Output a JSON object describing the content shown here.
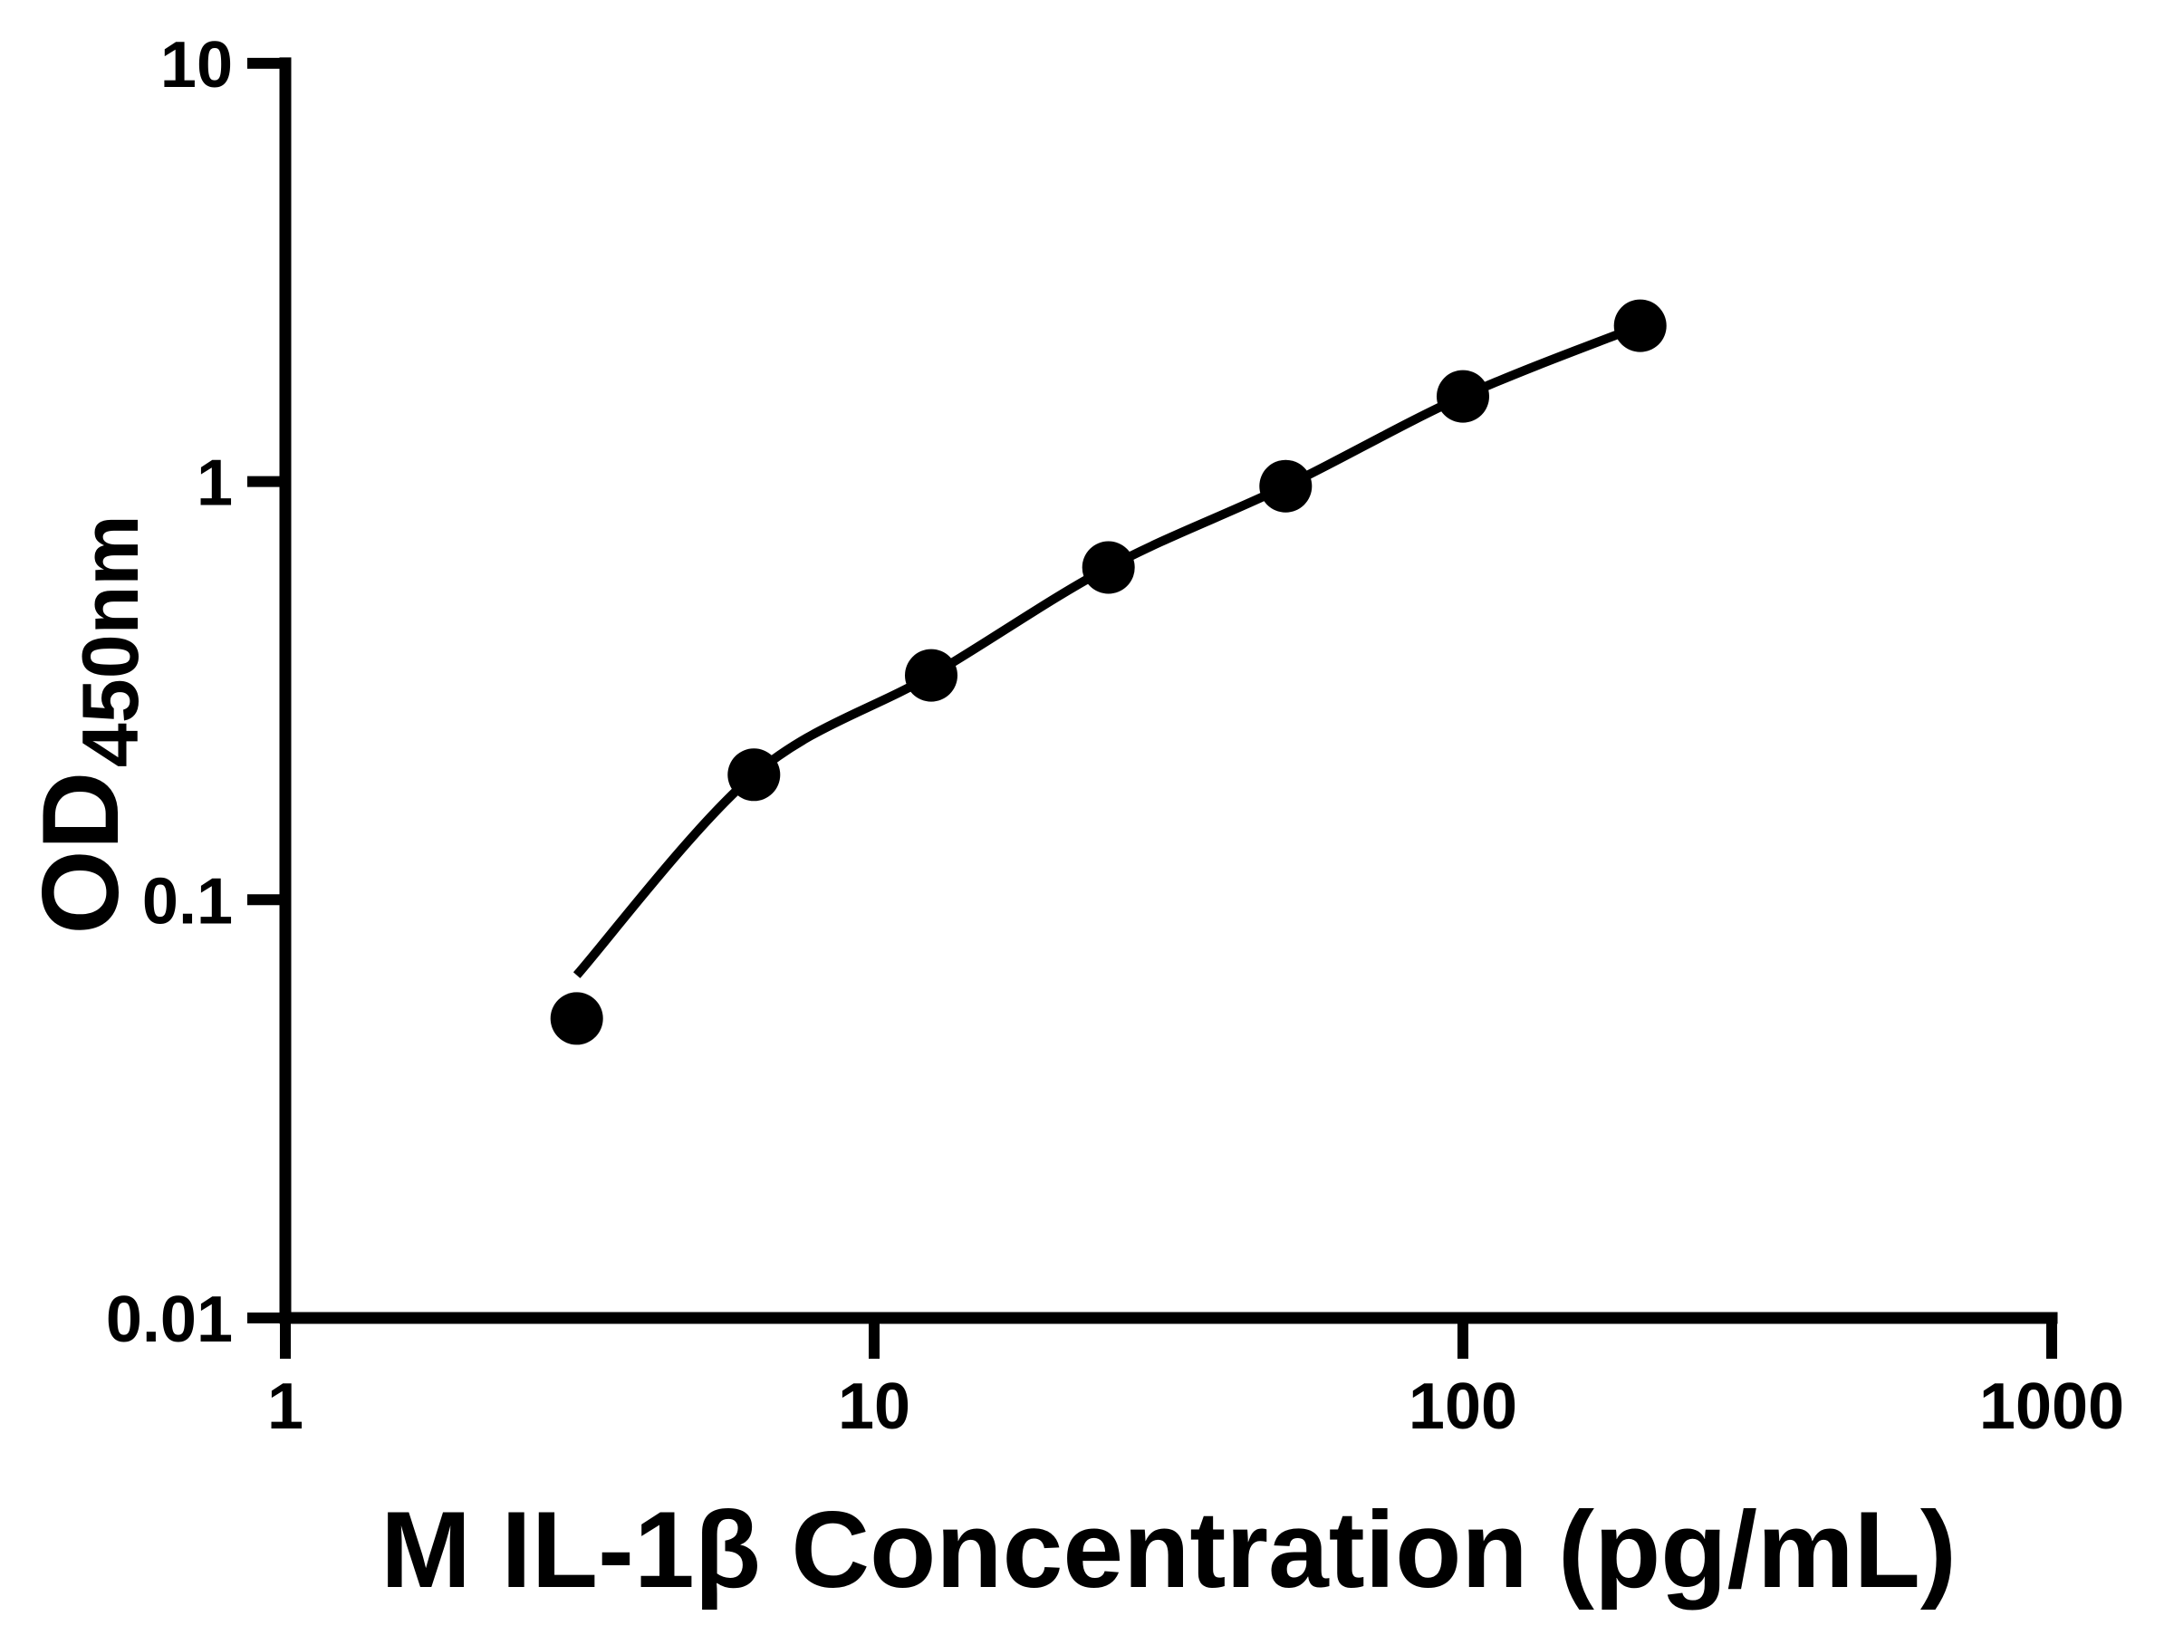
{
  "figure": {
    "background_color": "#ffffff",
    "ink_color": "#000000"
  },
  "chart_data": {
    "type": "scatter",
    "title": "",
    "xlabel": "M IL-1β Concentration (pg/mL)",
    "ylabel_main": "OD",
    "ylabel_sub": "450nm",
    "x_scale": "log",
    "y_scale": "log",
    "xlim": [
      1,
      1000
    ],
    "ylim": [
      0.01,
      10
    ],
    "grid": "off",
    "legend": "none",
    "x_ticks": [
      {
        "value": 1,
        "label": "1"
      },
      {
        "value": 10,
        "label": "10"
      },
      {
        "value": 100,
        "label": "100"
      },
      {
        "value": 1000,
        "label": "1000"
      }
    ],
    "y_ticks": [
      {
        "value": 10,
        "label": "10"
      },
      {
        "value": 1,
        "label": "1"
      },
      {
        "value": 0.1,
        "label": "0.1"
      },
      {
        "value": 0.01,
        "label": "0.01"
      }
    ],
    "series": [
      {
        "name": "standard-curve-points",
        "marker": "filled-circle",
        "color": "#000000",
        "points": [
          {
            "x": 3.125,
            "y": 0.052
          },
          {
            "x": 6.25,
            "y": 0.199
          },
          {
            "x": 12.5,
            "y": 0.344
          },
          {
            "x": 25,
            "y": 0.623
          },
          {
            "x": 50,
            "y": 0.975
          },
          {
            "x": 100,
            "y": 1.598
          },
          {
            "x": 200,
            "y": 2.358
          }
        ]
      }
    ],
    "fit_curve": {
      "name": "four-parameter-logistic-fit",
      "color": "#000000",
      "points": [
        {
          "x": 3.125,
          "y": 0.066
        },
        {
          "x": 6.25,
          "y": 0.199
        },
        {
          "x": 12.5,
          "y": 0.344
        },
        {
          "x": 25,
          "y": 0.623
        },
        {
          "x": 50,
          "y": 0.975
        },
        {
          "x": 100,
          "y": 1.598
        },
        {
          "x": 200,
          "y": 2.358
        }
      ]
    }
  }
}
